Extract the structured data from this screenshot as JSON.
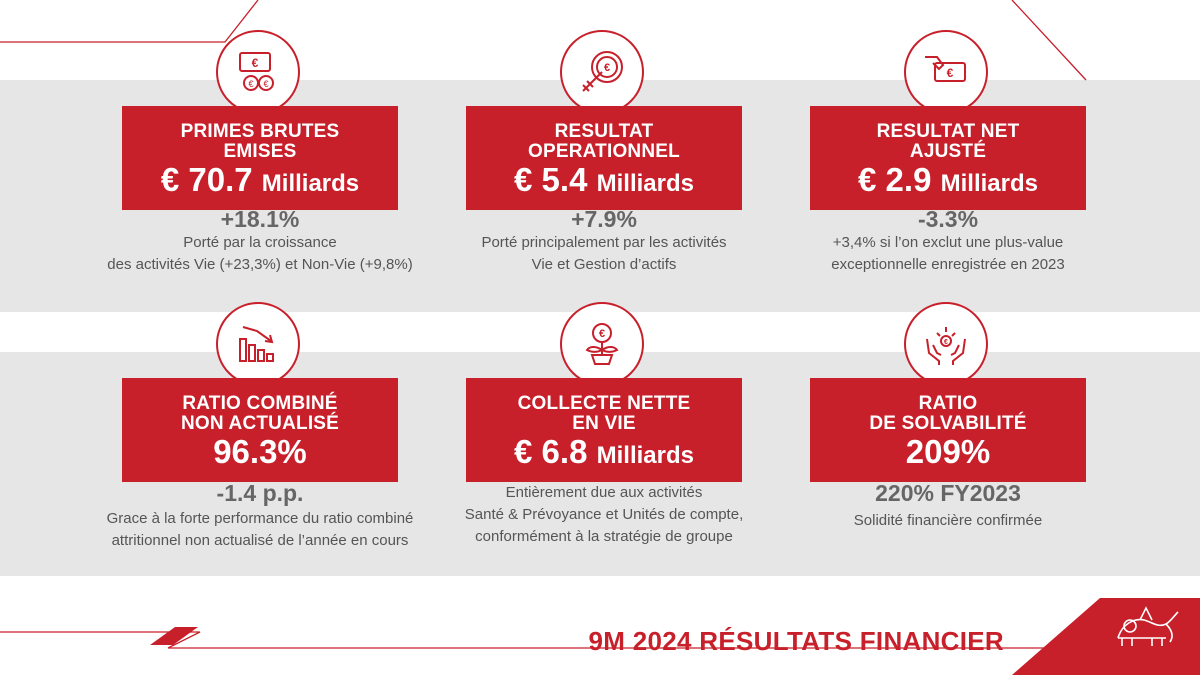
{
  "footer": {
    "title": "9M 2024 RÉSULTATS FINANCIER",
    "logo_text": "GENERALI"
  },
  "colors": {
    "brand_red": "#c8202b",
    "band_gray": "#e6e6e7",
    "text_gray": "#666666"
  },
  "cards": [
    {
      "icon": "money-icon",
      "title_lines": [
        "PRIMES BRUTES",
        "EMISES"
      ],
      "value": "€ 70.7",
      "unit": "Milliards",
      "change": "+18.1%",
      "desc_lines": [
        "Porté par la croissance",
        "des activités Vie (+23,3%) et Non-Vie (+9,8%)"
      ]
    },
    {
      "icon": "target-icon",
      "title_lines": [
        "RESULTAT",
        "OPERATIONNEL"
      ],
      "value": "€ 5.4",
      "unit": "Milliards",
      "change": "+7.9%",
      "desc_lines": [
        "Porté principalement par les activités",
        "Vie et Gestion d’actifs"
      ]
    },
    {
      "icon": "hand-banknote-icon",
      "title_lines": [
        "RESULTAT NET",
        "AJUSTÉ"
      ],
      "value": "€ 2.9",
      "unit": "Milliards",
      "change": "-3.3%",
      "desc_lines": [
        "+3,4% si l’on exclut une plus-value",
        "exceptionnelle enregistrée en 2023"
      ]
    },
    {
      "icon": "declining-chart-icon",
      "title_lines": [
        "RATIO COMBINÉ",
        "NON ACTUALISÉ"
      ],
      "value": "96.3%",
      "unit": "",
      "change": "-1.4 p.p.",
      "desc_lines": [
        "Grace à la forte performance du ratio combiné",
        "attritionnel non actualisé de l’année en cours"
      ]
    },
    {
      "icon": "euro-plant-icon",
      "title_lines": [
        "COLLECTE NETTE",
        "EN VIE"
      ],
      "value": "€ 6.8",
      "unit": "Milliards",
      "change": "",
      "desc_lines": [
        "Entièrement due aux activités",
        "Santé & Prévoyance et Unités de compte,",
        "conformément à la stratégie de groupe"
      ]
    },
    {
      "icon": "hands-euro-icon",
      "title_lines": [
        "RATIO",
        "DE SOLVABILITÉ"
      ],
      "value": "209%",
      "unit": "",
      "change": "220% FY2023",
      "desc_lines": [
        "Solidité financière confirmée"
      ]
    }
  ]
}
